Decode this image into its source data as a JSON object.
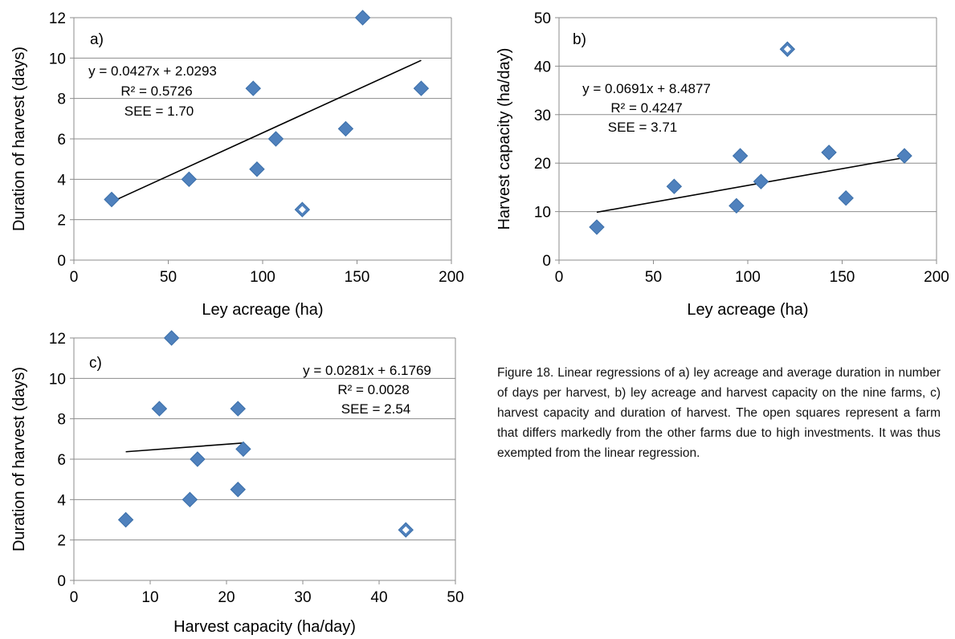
{
  "caption": "Figure 18. Linear regressions of a) ley acreage and average duration in number of days per harvest, b) ley acreage and harvest capacity on the nine farms, c) harvest capacity and duration of harvest. The open squares represent a farm that differs markedly from the other farms due to high investments. It was thus exempted from the linear regression.",
  "colors": {
    "marker": "#4F81BD",
    "marker_edge": "#3A6EA8",
    "grid": "#8C8C8C",
    "line": "#000000"
  },
  "chart_data": [
    {
      "type": "scatter",
      "panel_label": "a)",
      "xlabel": "Ley acreage (ha)",
      "ylabel": "Duration of harvest (days)",
      "xlim": [
        0,
        200
      ],
      "ylim": [
        0,
        12
      ],
      "xticks": [
        0,
        50,
        100,
        150,
        200
      ],
      "yticks": [
        0,
        2,
        4,
        6,
        8,
        10,
        12
      ],
      "grid": "horizontal",
      "points": [
        {
          "x": 20,
          "y": 3
        },
        {
          "x": 61,
          "y": 4
        },
        {
          "x": 95,
          "y": 8.5
        },
        {
          "x": 97,
          "y": 4.5
        },
        {
          "x": 107,
          "y": 6
        },
        {
          "x": 144,
          "y": 6.5
        },
        {
          "x": 153,
          "y": 12
        },
        {
          "x": 184,
          "y": 8.5
        }
      ],
      "excluded_points": [
        {
          "x": 121,
          "y": 2.5
        }
      ],
      "trendline": {
        "x": [
          20,
          184
        ],
        "slope": 0.0427,
        "intercept": 2.0293
      },
      "annotations": [
        "y = 0.0427x + 2.0293",
        "R² = 0.5726",
        "SEE = 1.70"
      ]
    },
    {
      "type": "scatter",
      "panel_label": "b)",
      "xlabel": "Ley acreage (ha)",
      "ylabel": "Harvest capacity (ha/day)",
      "xlim": [
        0,
        200
      ],
      "ylim": [
        0,
        50
      ],
      "xticks": [
        0,
        50,
        100,
        150,
        200
      ],
      "yticks": [
        0,
        10,
        20,
        30,
        40,
        50
      ],
      "grid": "horizontal",
      "points": [
        {
          "x": 20,
          "y": 6.8
        },
        {
          "x": 61,
          "y": 15.2
        },
        {
          "x": 94,
          "y": 11.2
        },
        {
          "x": 96,
          "y": 21.5
        },
        {
          "x": 107,
          "y": 16.2
        },
        {
          "x": 143,
          "y": 22.2
        },
        {
          "x": 152,
          "y": 12.8
        },
        {
          "x": 183,
          "y": 21.5
        }
      ],
      "excluded_points": [
        {
          "x": 121,
          "y": 43.5
        }
      ],
      "trendline": {
        "x": [
          20,
          183
        ],
        "slope": 0.0691,
        "intercept": 8.4877
      },
      "annotations": [
        "y = 0.0691x + 8.4877",
        "R² = 0.4247",
        "SEE = 3.71"
      ]
    },
    {
      "type": "scatter",
      "panel_label": "c)",
      "xlabel": "Harvest capacity (ha/day)",
      "ylabel": "Duration of harvest (days)",
      "xlim": [
        0,
        50
      ],
      "ylim": [
        0,
        12
      ],
      "xticks": [
        0,
        10,
        20,
        30,
        40,
        50
      ],
      "yticks": [
        0,
        2,
        4,
        6,
        8,
        10,
        12
      ],
      "grid": "horizontal",
      "points": [
        {
          "x": 6.8,
          "y": 3
        },
        {
          "x": 11.2,
          "y": 8.5
        },
        {
          "x": 12.8,
          "y": 12
        },
        {
          "x": 15.2,
          "y": 4
        },
        {
          "x": 16.2,
          "y": 6
        },
        {
          "x": 21.5,
          "y": 8.5
        },
        {
          "x": 21.5,
          "y": 4.5
        },
        {
          "x": 22.2,
          "y": 6.5
        }
      ],
      "excluded_points": [
        {
          "x": 43.5,
          "y": 2.5
        }
      ],
      "trendline": {
        "x": [
          6.8,
          22.2
        ],
        "slope": 0.0281,
        "intercept": 6.1769
      },
      "annotations": [
        "y = 0.0281x + 6.1769",
        "R² = 0.0028",
        "SEE = 2.54"
      ]
    }
  ]
}
